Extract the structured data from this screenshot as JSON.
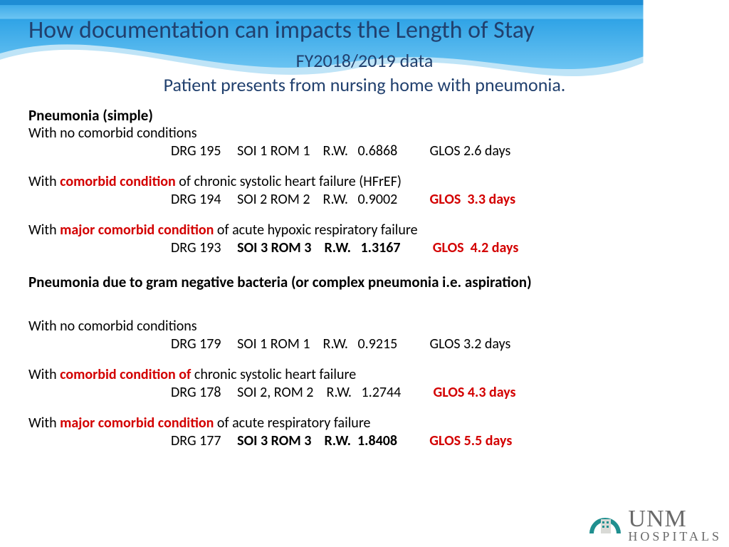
{
  "colors": {
    "title": "#21406e",
    "highlight": "#d30000",
    "banner_top": "#2fa3e6",
    "banner_mid": "#4db4ef",
    "banner_light": "#bfe4f7",
    "logo_teal": "#1f8f8f",
    "logo_gray": "#6a6a6a"
  },
  "header": {
    "title": "How documentation can impacts the Length of Stay",
    "subtitle1": "FY2018/2019 data",
    "subtitle2": "Patient presents from nursing home with pneumonia."
  },
  "sections": [
    {
      "heading": "Pneumonia   (simple)",
      "cases": [
        {
          "cond_pre": "With no comorbid conditions",
          "cond_red": "",
          "cond_post": "",
          "drg": "DRG 195",
          "soi_rom": "SOI 1 ROM 1",
          "rw": "R.W.   0.6868",
          "glos": "GLOS 2.6 days",
          "bold_stats": false,
          "glos_red": false
        },
        {
          "cond_pre": "With ",
          "cond_red": "comorbid condition",
          "cond_post": " of chronic systolic heart failure (HFrEF)",
          "drg": "DRG 194",
          "soi_rom": "SOI 2 ROM 2",
          "rw": "R.W.   0.9002",
          "glos": "GLOS  3.3 days",
          "bold_stats": false,
          "glos_red": true
        },
        {
          "cond_pre": "With ",
          "cond_red": "major comorbid condition",
          "cond_post": " of acute hypoxic respiratory failure",
          "drg": "DRG 193",
          "soi_rom": "SOI 3 ROM 3",
          "rw": "R.W.   1.3167",
          "glos": "GLOS  4.2 days",
          "bold_stats": true,
          "glos_red": true
        }
      ]
    },
    {
      "heading": "Pneumonia due to gram negative bacteria (or complex pneumonia i.e. aspiration)",
      "cases": [
        {
          "cond_pre": "With no comorbid conditions",
          "cond_red": "",
          "cond_post": "",
          "drg": "DRG 179",
          "soi_rom": "SOI 1 ROM 1",
          "rw": "R.W.   0.9215",
          "glos": "GLOS 3.2 days",
          "bold_stats": false,
          "glos_red": false
        },
        {
          "cond_pre": "With ",
          "cond_red": "comorbid condition of",
          "cond_post": " chronic systolic heart failure",
          "drg": "DRG 178",
          "soi_rom": "SOI 2, ROM 2",
          "rw": "R.W.   1.2744",
          "glos": "GLOS 4.3 days",
          "bold_stats": false,
          "glos_red": true
        },
        {
          "cond_pre": "With ",
          "cond_red": "major comorbid condition",
          "cond_post": " of acute respiratory failure",
          "drg": "DRG 177",
          "soi_rom": "SOI 3 ROM 3",
          "rw": "R.W.  1.8408",
          "glos": "GLOS 5.5 days",
          "bold_stats": true,
          "glos_red": true
        }
      ]
    }
  ],
  "logo": {
    "line1": "UNM",
    "line2": "HOSPITALS"
  }
}
